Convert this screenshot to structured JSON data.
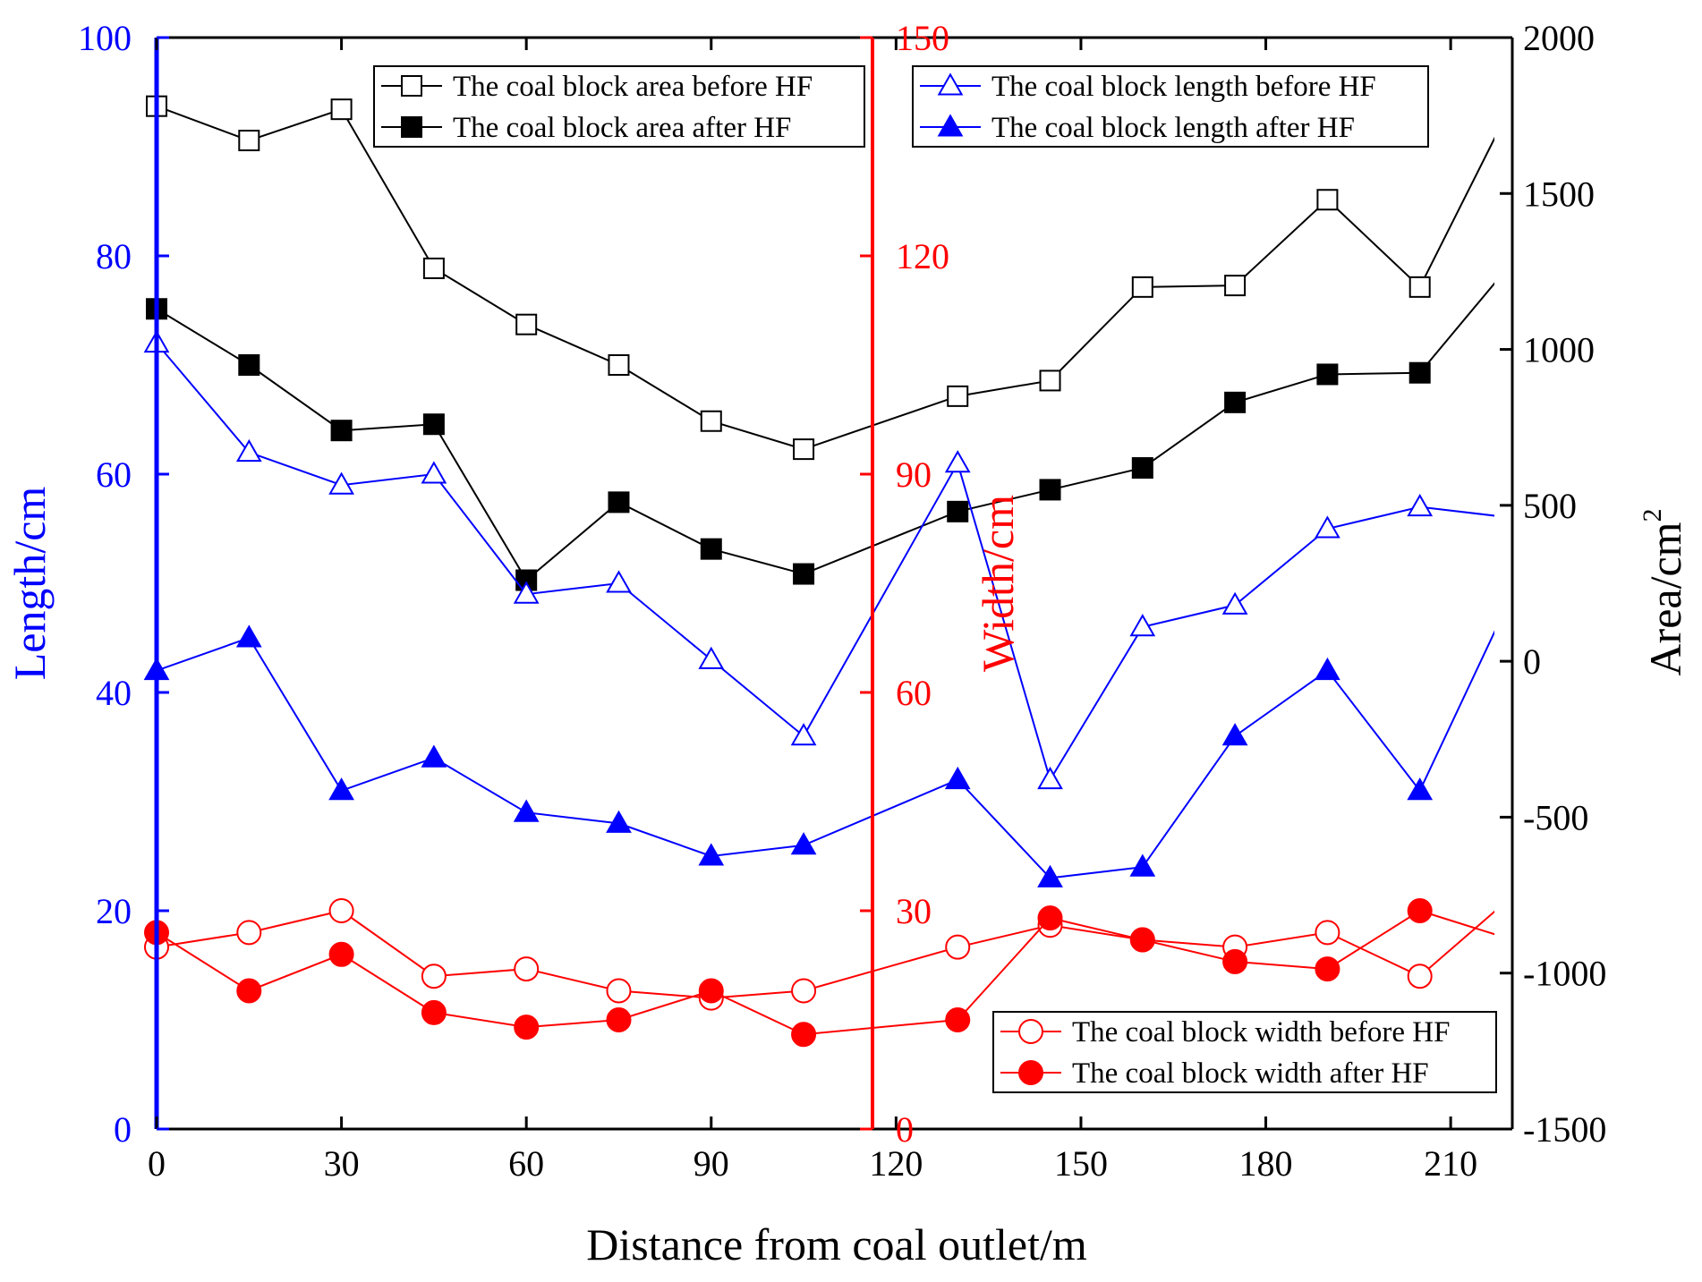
{
  "chart_data": {
    "type": "line",
    "x_axis": {
      "label": "Distance from coal outlet/m",
      "range": [
        0,
        220
      ],
      "ticks": [
        0,
        30,
        60,
        90,
        120,
        150,
        180,
        210
      ],
      "tick_labels": [
        "0",
        "30",
        "60",
        "90",
        "120",
        "150",
        "180",
        "210"
      ]
    },
    "y_axes": [
      {
        "id": "length",
        "label": "Length/cm",
        "side": "left",
        "color": "#0000ff",
        "range": [
          0,
          100
        ],
        "ticks": [
          0,
          20,
          40,
          60,
          80,
          100
        ],
        "tick_labels": [
          "0",
          "20",
          "40",
          "60",
          "80",
          "100"
        ]
      },
      {
        "id": "width",
        "label": "Width/cm",
        "side": "middle",
        "color": "#ff0000",
        "range": [
          0,
          150
        ],
        "ticks": [
          0,
          30,
          60,
          90,
          120,
          150
        ],
        "tick_labels": [
          "0",
          "30",
          "60",
          "90",
          "120",
          "150"
        ]
      },
      {
        "id": "area",
        "label": "Area/cm",
        "label_superscript": "2",
        "side": "right",
        "color": "#000000",
        "range": [
          -1500,
          2000
        ],
        "ticks": [
          -1500,
          -1000,
          -500,
          0,
          500,
          1000,
          1500,
          2000
        ],
        "tick_labels": [
          "-1500",
          "-1000",
          "-500",
          "0",
          "500",
          "1000",
          "1500",
          "2000"
        ]
      }
    ],
    "x": [
      0,
      15,
      30,
      45,
      60,
      75,
      90,
      105,
      130,
      145,
      160,
      175,
      190,
      205,
      220
    ],
    "series": [
      {
        "name": "The coal block area before HF",
        "axis": "area",
        "color": "#000000",
        "marker": "square",
        "filled": false,
        "values": [
          1780,
          1670,
          1770,
          1260,
          1080,
          950,
          770,
          680,
          850,
          900,
          1200,
          1205,
          1480,
          1200,
          1790
        ]
      },
      {
        "name": "The coal block area after HF",
        "axis": "area",
        "color": "#000000",
        "marker": "square",
        "filled": true,
        "values": [
          1130,
          950,
          740,
          760,
          260,
          510,
          360,
          280,
          480,
          550,
          620,
          830,
          920,
          925,
          1280
        ]
      },
      {
        "name": "The coal block length before HF",
        "axis": "length",
        "color": "#0000ff",
        "marker": "triangle",
        "filled": false,
        "values": [
          72,
          62,
          59,
          60,
          49,
          50,
          43,
          36,
          61,
          32,
          46,
          48,
          55,
          57,
          56
        ]
      },
      {
        "name": "The coal block length after HF",
        "axis": "length",
        "color": "#0000ff",
        "marker": "triangle",
        "filled": true,
        "values": [
          42,
          45,
          31,
          34,
          29,
          28,
          25,
          26,
          32,
          23,
          24,
          36,
          42,
          31,
          49
        ]
      },
      {
        "name": "The coal block width before HF",
        "axis": "width",
        "color": "#ff0000",
        "marker": "circle",
        "filled": false,
        "values": [
          25,
          27,
          30,
          21,
          22,
          19,
          18,
          19,
          25,
          28,
          26,
          25,
          27,
          21,
          32
        ]
      },
      {
        "name": "The coal block width after HF",
        "axis": "width",
        "color": "#ff0000",
        "marker": "circle",
        "filled": true,
        "values": [
          27,
          19,
          24,
          16,
          14,
          15,
          19,
          13,
          15,
          29,
          26,
          23,
          22,
          30,
          26
        ]
      }
    ],
    "legends": [
      {
        "placement": "top-left",
        "items": [
          "The coal block area before HF",
          "The coal block area after HF"
        ]
      },
      {
        "placement": "top-right",
        "items": [
          "The coal block length before HF",
          "The coal block length after HF"
        ]
      },
      {
        "placement": "bottom-right",
        "items": [
          "The coal block width before HF",
          "The coal block width after HF"
        ]
      }
    ],
    "grid": false
  }
}
